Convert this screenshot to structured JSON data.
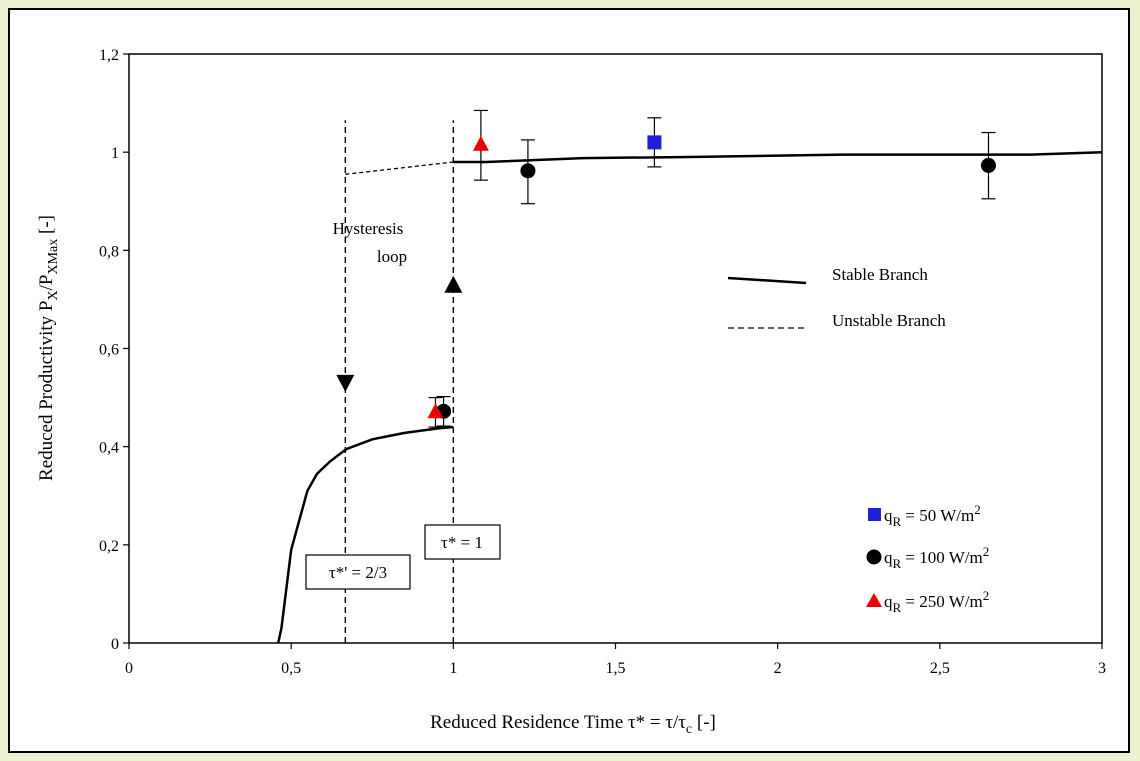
{
  "chart_data": {
    "type": "scatter",
    "xlabel": "Reduced Residence Time τ* = τ/τc [-]",
    "ylabel": "Reduced Productivity PX/PXMax [-]",
    "xlim": [
      0,
      3
    ],
    "ylim": [
      0,
      1.2
    ],
    "x_ticks": [
      "0",
      "0,5",
      "1",
      "1,5",
      "2",
      "2,5",
      "3"
    ],
    "y_ticks": [
      "0",
      "0,2",
      "0,4",
      "0,6",
      "0,8",
      "1",
      "1,2"
    ],
    "x_tick_values": [
      0,
      0.5,
      1,
      1.5,
      2,
      2.5,
      3
    ],
    "y_tick_values": [
      0,
      0.2,
      0.4,
      0.6,
      0.8,
      1,
      1.2
    ],
    "grid": false,
    "legend_lines": [
      {
        "label": "Stable Branch",
        "style": "solid"
      },
      {
        "label": "Unstable Branch",
        "style": "dashed"
      }
    ],
    "legend_markers": [
      {
        "label": "qR = 50 W/m2",
        "marker": "square",
        "color": "#1f1fd6"
      },
      {
        "label": "qR = 100 W/m2",
        "marker": "circle",
        "color": "#000000"
      },
      {
        "label": "qR = 250 W/m2",
        "marker": "triangle",
        "color": "#e60000"
      }
    ],
    "series": [
      {
        "name": "Stable Branch",
        "style": "solid",
        "segments": [
          {
            "x": [
              0.46,
              0.47,
              0.5,
              0.55,
              0.58,
              0.62,
              0.67,
              0.75,
              0.85,
              0.95,
              1.0
            ],
            "y": [
              0.0,
              0.03,
              0.19,
              0.31,
              0.345,
              0.37,
              0.395,
              0.415,
              0.428,
              0.437,
              0.44
            ]
          },
          {
            "x": [
              1.0,
              1.1,
              1.4,
              1.7,
              2.2,
              2.78,
              3.0
            ],
            "y": [
              0.98,
              0.98,
              0.988,
              0.99,
              0.995,
              0.995,
              1.0
            ]
          }
        ]
      },
      {
        "name": "Unstable Branch",
        "style": "dashed",
        "segments": [
          {
            "x": [
              0.667,
              1.0
            ],
            "y": [
              0.955,
              0.98
            ]
          }
        ]
      },
      {
        "name": "qR = 50 W/m2",
        "marker": "square",
        "color": "#1f1fd6",
        "points": [
          {
            "x": 1.62,
            "y": 1.02,
            "err_low": 0.97,
            "err_high": 1.07
          }
        ]
      },
      {
        "name": "qR = 100 W/m2",
        "marker": "circle",
        "color": "#000000",
        "points": [
          {
            "x": 0.97,
            "y": 0.472,
            "err_low": 0.442,
            "err_high": 0.502
          },
          {
            "x": 1.23,
            "y": 0.962,
            "err_low": 0.895,
            "err_high": 1.025
          },
          {
            "x": 2.65,
            "y": 0.973,
            "err_low": 0.905,
            "err_high": 1.04
          }
        ]
      },
      {
        "name": "qR = 250 W/m2",
        "marker": "triangle",
        "color": "#e60000",
        "points": [
          {
            "x": 0.945,
            "y": 0.47,
            "err_low": 0.44,
            "err_high": 0.5
          },
          {
            "x": 1.085,
            "y": 1.015,
            "err_low": 0.943,
            "err_high": 1.085
          }
        ]
      }
    ],
    "vertical_lines": [
      {
        "x": 0.667,
        "y_from": 0,
        "y_to": 1.065,
        "arrow": "down",
        "arrow_y": 0.53
      },
      {
        "x": 1.0,
        "y_from": 0,
        "y_to": 1.065,
        "arrow": "up",
        "arrow_y": 0.73
      }
    ],
    "annotations": {
      "hysteresis_line1": "Hysteresis",
      "hysteresis_line2": "loop",
      "tau_23": "τ*' = 2/3",
      "tau_1": "τ* = 1"
    }
  }
}
